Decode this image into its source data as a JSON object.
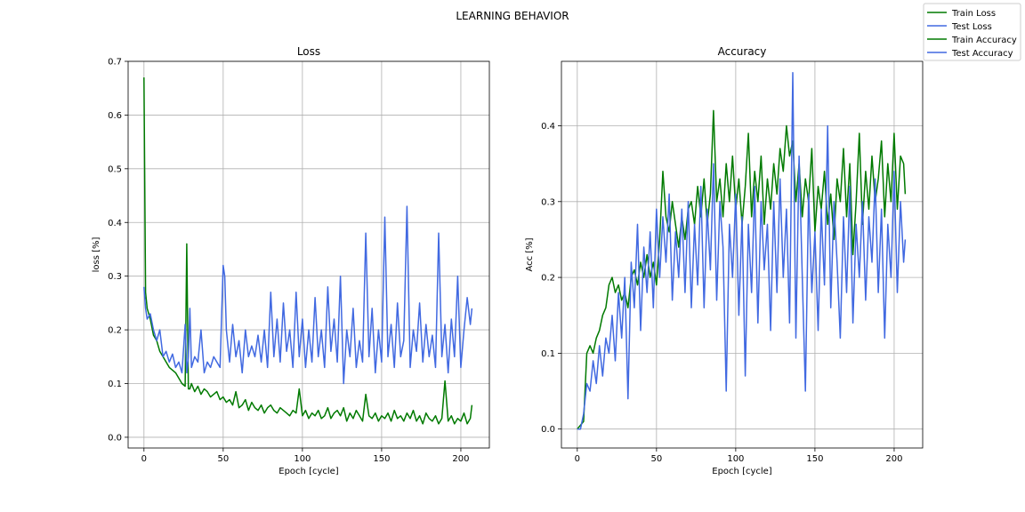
{
  "figure": {
    "title": "LEARNING BEHAVIOR"
  },
  "legend": {
    "placement": "top-right",
    "entries": [
      {
        "label": "Train Loss",
        "color": "#007a00"
      },
      {
        "label": "Test Loss",
        "color": "#4169e1"
      },
      {
        "label": "Train Accuracy",
        "color": "#007a00"
      },
      {
        "label": "Test Accuracy",
        "color": "#4169e1"
      }
    ]
  },
  "chart_data": [
    {
      "type": "line",
      "title": "Loss",
      "xlabel": "Epoch [cycle]",
      "ylabel": "loss [%]",
      "xlim": [
        -10,
        218
      ],
      "ylim": [
        -0.02,
        0.7
      ],
      "xticks": [
        0,
        50,
        100,
        150,
        200
      ],
      "yticks": [
        0.0,
        0.1,
        0.2,
        0.3,
        0.4,
        0.5,
        0.6,
        0.7
      ],
      "grid": true,
      "series": [
        {
          "name": "Train Loss",
          "color": "#007a00",
          "x": [
            0,
            1,
            2,
            4,
            6,
            8,
            10,
            12,
            14,
            16,
            18,
            20,
            22,
            24,
            26,
            27,
            28,
            29,
            30,
            32,
            34,
            36,
            38,
            40,
            42,
            44,
            46,
            48,
            50,
            52,
            54,
            56,
            58,
            60,
            62,
            64,
            66,
            68,
            70,
            72,
            74,
            76,
            78,
            80,
            82,
            84,
            86,
            88,
            90,
            92,
            94,
            96,
            98,
            100,
            102,
            104,
            106,
            108,
            110,
            112,
            114,
            116,
            118,
            120,
            122,
            124,
            126,
            128,
            130,
            132,
            134,
            136,
            138,
            140,
            142,
            144,
            146,
            148,
            150,
            152,
            154,
            156,
            158,
            160,
            162,
            164,
            166,
            168,
            170,
            172,
            174,
            176,
            178,
            180,
            182,
            184,
            186,
            188,
            190,
            192,
            194,
            196,
            198,
            200,
            202,
            204,
            206,
            207
          ],
          "y": [
            0.67,
            0.27,
            0.24,
            0.22,
            0.19,
            0.18,
            0.16,
            0.15,
            0.14,
            0.13,
            0.125,
            0.12,
            0.11,
            0.1,
            0.095,
            0.36,
            0.09,
            0.09,
            0.1,
            0.085,
            0.095,
            0.08,
            0.09,
            0.085,
            0.075,
            0.08,
            0.085,
            0.07,
            0.075,
            0.065,
            0.07,
            0.06,
            0.085,
            0.055,
            0.06,
            0.07,
            0.05,
            0.065,
            0.055,
            0.05,
            0.06,
            0.045,
            0.055,
            0.06,
            0.05,
            0.045,
            0.055,
            0.05,
            0.045,
            0.04,
            0.05,
            0.045,
            0.09,
            0.04,
            0.05,
            0.035,
            0.045,
            0.04,
            0.05,
            0.035,
            0.04,
            0.055,
            0.035,
            0.045,
            0.05,
            0.04,
            0.055,
            0.03,
            0.045,
            0.035,
            0.05,
            0.04,
            0.03,
            0.08,
            0.04,
            0.035,
            0.045,
            0.03,
            0.04,
            0.035,
            0.045,
            0.03,
            0.05,
            0.035,
            0.04,
            0.03,
            0.045,
            0.035,
            0.05,
            0.03,
            0.04,
            0.025,
            0.045,
            0.035,
            0.03,
            0.04,
            0.025,
            0.035,
            0.105,
            0.03,
            0.04,
            0.025,
            0.035,
            0.03,
            0.045,
            0.025,
            0.035,
            0.06
          ]
        },
        {
          "name": "Test Loss",
          "color": "#4169e1",
          "x": [
            0,
            1,
            2,
            4,
            6,
            8,
            10,
            12,
            14,
            16,
            18,
            20,
            22,
            24,
            26,
            27,
            28,
            29,
            30,
            32,
            34,
            36,
            38,
            40,
            42,
            44,
            46,
            48,
            50,
            51,
            52,
            54,
            56,
            58,
            60,
            62,
            64,
            66,
            68,
            70,
            72,
            74,
            76,
            78,
            80,
            82,
            84,
            86,
            88,
            90,
            92,
            94,
            96,
            98,
            100,
            102,
            104,
            106,
            108,
            110,
            112,
            114,
            116,
            118,
            120,
            122,
            124,
            126,
            128,
            130,
            132,
            134,
            136,
            138,
            140,
            142,
            144,
            146,
            148,
            150,
            152,
            154,
            156,
            158,
            160,
            162,
            164,
            166,
            168,
            170,
            172,
            174,
            176,
            178,
            180,
            182,
            184,
            186,
            188,
            190,
            192,
            194,
            196,
            198,
            200,
            202,
            204,
            206,
            207
          ],
          "y": [
            0.28,
            0.24,
            0.22,
            0.23,
            0.2,
            0.18,
            0.2,
            0.15,
            0.16,
            0.14,
            0.155,
            0.13,
            0.14,
            0.12,
            0.21,
            0.12,
            0.15,
            0.24,
            0.13,
            0.15,
            0.14,
            0.2,
            0.12,
            0.14,
            0.13,
            0.15,
            0.14,
            0.13,
            0.32,
            0.3,
            0.2,
            0.14,
            0.21,
            0.15,
            0.18,
            0.12,
            0.2,
            0.15,
            0.17,
            0.15,
            0.19,
            0.14,
            0.2,
            0.13,
            0.27,
            0.15,
            0.22,
            0.14,
            0.25,
            0.16,
            0.2,
            0.13,
            0.27,
            0.15,
            0.22,
            0.13,
            0.2,
            0.14,
            0.26,
            0.15,
            0.2,
            0.13,
            0.28,
            0.16,
            0.22,
            0.14,
            0.3,
            0.1,
            0.2,
            0.15,
            0.24,
            0.13,
            0.18,
            0.14,
            0.38,
            0.15,
            0.24,
            0.12,
            0.2,
            0.14,
            0.41,
            0.15,
            0.21,
            0.13,
            0.25,
            0.15,
            0.18,
            0.43,
            0.13,
            0.2,
            0.16,
            0.25,
            0.14,
            0.21,
            0.15,
            0.19,
            0.13,
            0.38,
            0.15,
            0.21,
            0.12,
            0.22,
            0.15,
            0.3,
            0.13,
            0.2,
            0.26,
            0.21,
            0.24
          ]
        }
      ]
    },
    {
      "type": "line",
      "title": "Accuracy",
      "xlabel": "Epoch [cycle]",
      "ylabel": "Acc [%]",
      "xlim": [
        -10,
        218
      ],
      "ylim": [
        -0.025,
        0.485
      ],
      "xticks": [
        0,
        50,
        100,
        150,
        200
      ],
      "yticks": [
        0.0,
        0.1,
        0.2,
        0.3,
        0.4
      ],
      "grid": true,
      "series": [
        {
          "name": "Train Accuracy",
          "color": "#007a00",
          "x": [
            0,
            2,
            4,
            6,
            8,
            10,
            12,
            14,
            16,
            18,
            20,
            22,
            24,
            26,
            28,
            30,
            32,
            34,
            36,
            38,
            40,
            42,
            44,
            46,
            48,
            50,
            52,
            54,
            56,
            58,
            60,
            62,
            64,
            66,
            68,
            70,
            72,
            74,
            76,
            78,
            80,
            82,
            84,
            86,
            88,
            90,
            92,
            94,
            96,
            98,
            100,
            102,
            104,
            106,
            108,
            110,
            112,
            114,
            116,
            118,
            120,
            122,
            124,
            126,
            128,
            130,
            132,
            134,
            136,
            138,
            140,
            142,
            144,
            146,
            148,
            150,
            152,
            154,
            156,
            158,
            160,
            162,
            164,
            166,
            168,
            170,
            172,
            174,
            176,
            178,
            180,
            182,
            184,
            186,
            188,
            190,
            192,
            194,
            196,
            198,
            200,
            202,
            204,
            206,
            207
          ],
          "y": [
            0.0,
            0.005,
            0.01,
            0.1,
            0.11,
            0.1,
            0.12,
            0.13,
            0.15,
            0.16,
            0.19,
            0.2,
            0.18,
            0.19,
            0.17,
            0.18,
            0.16,
            0.2,
            0.21,
            0.19,
            0.22,
            0.2,
            0.23,
            0.2,
            0.22,
            0.19,
            0.25,
            0.34,
            0.28,
            0.26,
            0.3,
            0.27,
            0.24,
            0.28,
            0.25,
            0.29,
            0.3,
            0.27,
            0.32,
            0.28,
            0.33,
            0.27,
            0.31,
            0.42,
            0.3,
            0.33,
            0.28,
            0.35,
            0.3,
            0.36,
            0.29,
            0.33,
            0.27,
            0.32,
            0.39,
            0.28,
            0.34,
            0.3,
            0.36,
            0.27,
            0.33,
            0.29,
            0.35,
            0.31,
            0.37,
            0.34,
            0.4,
            0.36,
            0.38,
            0.3,
            0.35,
            0.28,
            0.33,
            0.3,
            0.37,
            0.26,
            0.32,
            0.29,
            0.34,
            0.27,
            0.31,
            0.25,
            0.33,
            0.3,
            0.37,
            0.28,
            0.35,
            0.23,
            0.3,
            0.39,
            0.27,
            0.34,
            0.29,
            0.36,
            0.3,
            0.33,
            0.38,
            0.28,
            0.35,
            0.3,
            0.39,
            0.29,
            0.36,
            0.35,
            0.31
          ]
        },
        {
          "name": "Test Accuracy",
          "color": "#4169e1",
          "x": [
            0,
            2,
            4,
            6,
            8,
            10,
            12,
            14,
            16,
            18,
            20,
            22,
            24,
            26,
            28,
            30,
            32,
            34,
            36,
            38,
            40,
            42,
            44,
            46,
            48,
            50,
            52,
            54,
            56,
            58,
            60,
            62,
            64,
            66,
            68,
            70,
            72,
            74,
            76,
            78,
            80,
            82,
            84,
            86,
            88,
            90,
            92,
            94,
            96,
            98,
            100,
            102,
            104,
            106,
            108,
            110,
            112,
            114,
            116,
            118,
            120,
            122,
            124,
            126,
            128,
            130,
            132,
            134,
            136,
            138,
            140,
            142,
            144,
            146,
            148,
            150,
            152,
            154,
            156,
            158,
            160,
            162,
            164,
            166,
            168,
            170,
            172,
            174,
            176,
            178,
            180,
            182,
            184,
            186,
            188,
            190,
            192,
            194,
            196,
            198,
            200,
            202,
            204,
            206,
            207
          ],
          "y": [
            0.0,
            0.0,
            0.02,
            0.06,
            0.05,
            0.09,
            0.06,
            0.11,
            0.07,
            0.12,
            0.1,
            0.15,
            0.09,
            0.18,
            0.12,
            0.2,
            0.04,
            0.22,
            0.16,
            0.27,
            0.13,
            0.24,
            0.18,
            0.26,
            0.16,
            0.29,
            0.2,
            0.28,
            0.22,
            0.31,
            0.17,
            0.26,
            0.2,
            0.29,
            0.18,
            0.3,
            0.16,
            0.27,
            0.19,
            0.32,
            0.16,
            0.29,
            0.21,
            0.35,
            0.17,
            0.3,
            0.24,
            0.05,
            0.27,
            0.2,
            0.31,
            0.15,
            0.28,
            0.07,
            0.27,
            0.18,
            0.32,
            0.14,
            0.3,
            0.21,
            0.27,
            0.13,
            0.3,
            0.18,
            0.33,
            0.2,
            0.29,
            0.14,
            0.47,
            0.12,
            0.36,
            0.2,
            0.05,
            0.31,
            0.18,
            0.26,
            0.13,
            0.29,
            0.19,
            0.4,
            0.16,
            0.3,
            0.22,
            0.12,
            0.28,
            0.18,
            0.32,
            0.14,
            0.27,
            0.2,
            0.3,
            0.17,
            0.28,
            0.22,
            0.33,
            0.18,
            0.29,
            0.12,
            0.27,
            0.2,
            0.34,
            0.18,
            0.3,
            0.22,
            0.25
          ]
        }
      ]
    }
  ]
}
